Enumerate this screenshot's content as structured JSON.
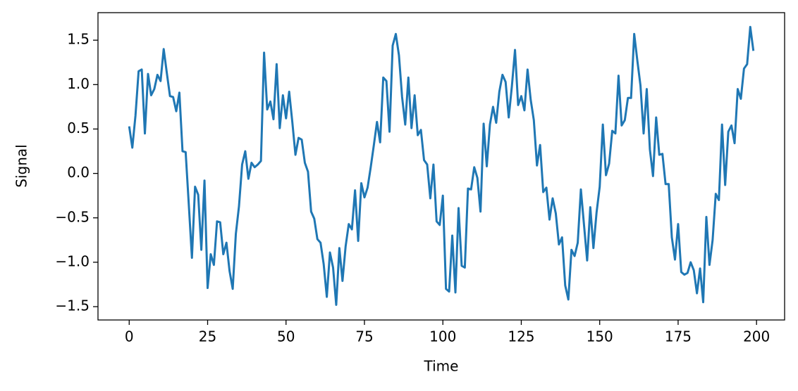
{
  "chart_data": {
    "type": "line",
    "x_label": "Time",
    "y_label": "Signal",
    "color": "#1f77b4",
    "x": [
      0,
      1,
      2,
      3,
      4,
      5,
      6,
      7,
      8,
      9,
      10,
      11,
      12,
      13,
      14,
      15,
      16,
      17,
      18,
      19,
      20,
      21,
      22,
      23,
      24,
      25,
      26,
      27,
      28,
      29,
      30,
      31,
      32,
      33,
      34,
      35,
      36,
      37,
      38,
      39,
      40,
      41,
      42,
      43,
      44,
      45,
      46,
      47,
      48,
      49,
      50,
      51,
      52,
      53,
      54,
      55,
      56,
      57,
      58,
      59,
      60,
      61,
      62,
      63,
      64,
      65,
      66,
      67,
      68,
      69,
      70,
      71,
      72,
      73,
      74,
      75,
      76,
      77,
      78,
      79,
      80,
      81,
      82,
      83,
      84,
      85,
      86,
      87,
      88,
      89,
      90,
      91,
      92,
      93,
      94,
      95,
      96,
      97,
      98,
      99,
      100,
      101,
      102,
      103,
      104,
      105,
      106,
      107,
      108,
      109,
      110,
      111,
      112,
      113,
      114,
      115,
      116,
      117,
      118,
      119,
      120,
      121,
      122,
      123,
      124,
      125,
      126,
      127,
      128,
      129,
      130,
      131,
      132,
      133,
      134,
      135,
      136,
      137,
      138,
      139,
      140,
      141,
      142,
      143,
      144,
      145,
      146,
      147,
      148,
      149,
      150,
      151,
      152,
      153,
      154,
      155,
      156,
      157,
      158,
      159,
      160,
      161,
      162,
      163,
      164,
      165,
      166,
      167,
      168,
      169,
      170,
      171,
      172,
      173,
      174,
      175,
      176,
      177,
      178,
      179,
      180,
      181,
      182,
      183,
      184,
      185,
      186,
      187,
      188,
      189,
      190,
      191,
      192,
      193,
      194,
      195,
      196,
      197,
      198,
      199
    ],
    "values": [
      0.53,
      0.29,
      0.65,
      1.15,
      1.17,
      0.45,
      1.12,
      0.88,
      0.95,
      1.11,
      1.04,
      1.4,
      1.13,
      0.87,
      0.86,
      0.7,
      0.91,
      0.25,
      0.24,
      -0.35,
      -0.95,
      -0.15,
      -0.24,
      -0.86,
      -0.08,
      -1.29,
      -0.91,
      -1.03,
      -0.54,
      -0.55,
      -0.91,
      -0.78,
      -1.1,
      -1.3,
      -0.68,
      -0.37,
      0.1,
      0.25,
      -0.06,
      0.12,
      0.07,
      0.1,
      0.14,
      1.36,
      0.72,
      0.81,
      0.61,
      1.23,
      0.51,
      0.88,
      0.62,
      0.92,
      0.58,
      0.21,
      0.4,
      0.38,
      0.12,
      0.02,
      -0.43,
      -0.51,
      -0.74,
      -0.78,
      -1.02,
      -1.39,
      -0.89,
      -1.06,
      -1.48,
      -0.84,
      -1.21,
      -0.82,
      -0.57,
      -0.63,
      -0.19,
      -0.76,
      -0.11,
      -0.27,
      -0.16,
      0.07,
      0.32,
      0.58,
      0.35,
      1.08,
      1.04,
      0.47,
      1.44,
      1.57,
      1.33,
      0.86,
      0.55,
      1.08,
      0.51,
      0.88,
      0.43,
      0.49,
      0.15,
      0.1,
      -0.28,
      0.1,
      -0.54,
      -0.58,
      -0.25,
      -1.3,
      -1.33,
      -0.7,
      -1.34,
      -0.39,
      -1.04,
      -1.06,
      -0.17,
      -0.18,
      0.07,
      -0.05,
      -0.43,
      0.56,
      0.08,
      0.55,
      0.75,
      0.57,
      0.92,
      1.11,
      1.03,
      0.63,
      0.98,
      1.39,
      0.77,
      0.87,
      0.71,
      1.17,
      0.83,
      0.6,
      0.09,
      0.32,
      -0.21,
      -0.16,
      -0.52,
      -0.28,
      -0.45,
      -0.8,
      -0.72,
      -1.26,
      -1.42,
      -0.86,
      -0.93,
      -0.78,
      -0.18,
      -0.58,
      -0.98,
      -0.38,
      -0.84,
      -0.44,
      -0.15,
      0.55,
      -0.02,
      0.11,
      0.48,
      0.45,
      1.1,
      0.54,
      0.6,
      0.85,
      0.85,
      1.57,
      1.27,
      0.99,
      0.45,
      0.95,
      0.27,
      -0.03,
      0.63,
      0.21,
      0.22,
      -0.12,
      -0.12,
      -0.72,
      -0.97,
      -0.57,
      -1.11,
      -1.14,
      -1.12,
      -1.0,
      -1.09,
      -1.35,
      -1.07,
      -1.45,
      -0.49,
      -1.03,
      -0.75,
      -0.23,
      -0.3,
      0.55,
      -0.13,
      0.47,
      0.54,
      0.34,
      0.95,
      0.84,
      1.18,
      1.23,
      1.65,
      1.38
    ],
    "xlim": [
      -9.95,
      208.95
    ],
    "ylim": [
      -1.65,
      1.81
    ],
    "xticks": [
      0,
      25,
      50,
      75,
      100,
      125,
      150,
      175,
      200
    ],
    "yticks": [
      {
        "value": -1.5,
        "label": "−1.5"
      },
      {
        "value": -1.0,
        "label": "−1.0"
      },
      {
        "value": -0.5,
        "label": "−0.5"
      },
      {
        "value": 0.0,
        "label": "0.0"
      },
      0.5,
      {
        "value": 1.0,
        "label": "1.0"
      },
      1.5
    ],
    "grid": false
  }
}
